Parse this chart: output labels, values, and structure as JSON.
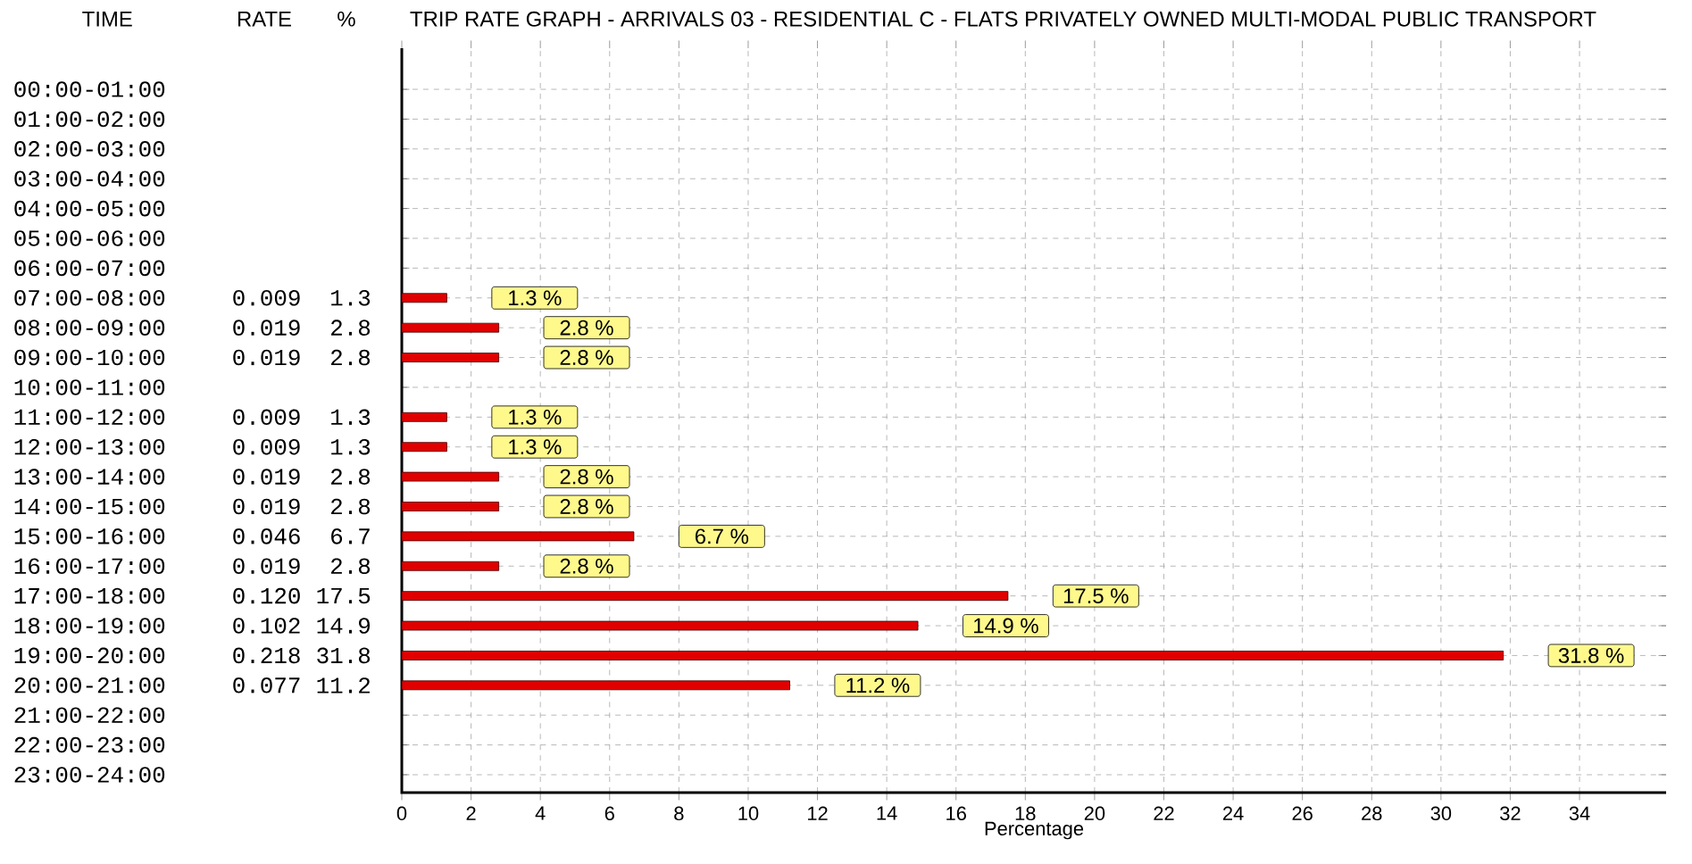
{
  "chart_data": {
    "type": "bar",
    "orientation": "horizontal",
    "title": "TRIP RATE GRAPH - ARRIVALS  03 - RESIDENTIAL  C - FLATS PRIVATELY OWNED     MULTI-MODAL PUBLIC TRANSPORT",
    "ylabel": "TIME",
    "xlabel": "Percentage",
    "categories": [
      "00:00-01:00",
      "01:00-02:00",
      "02:00-03:00",
      "03:00-04:00",
      "04:00-05:00",
      "05:00-06:00",
      "06:00-07:00",
      "07:00-08:00",
      "08:00-09:00",
      "09:00-10:00",
      "10:00-11:00",
      "11:00-12:00",
      "12:00-13:00",
      "13:00-14:00",
      "14:00-15:00",
      "15:00-16:00",
      "16:00-17:00",
      "17:00-18:00",
      "18:00-19:00",
      "19:00-20:00",
      "20:00-21:00",
      "21:00-22:00",
      "22:00-23:00",
      "23:00-24:00"
    ],
    "values": [
      null,
      null,
      null,
      null,
      null,
      null,
      null,
      1.3,
      2.8,
      2.8,
      null,
      1.3,
      1.3,
      2.8,
      2.8,
      6.7,
      2.8,
      17.5,
      14.9,
      31.8,
      11.2,
      null,
      null,
      null
    ],
    "value_labels": [
      null,
      null,
      null,
      null,
      null,
      null,
      null,
      "1.3 %",
      "2.8 %",
      "2.8 %",
      null,
      "1.3 %",
      "1.3 %",
      "2.8 %",
      "2.8 %",
      "6.7 %",
      "2.8 %",
      "17.5 %",
      "14.9 %",
      "31.8 %",
      "11.2 %",
      null,
      null,
      null
    ],
    "color": "#e00000",
    "xlim": [
      0,
      36.5
    ],
    "xticks": [
      0,
      2,
      4,
      6,
      8,
      10,
      12,
      14,
      16,
      18,
      20,
      22,
      24,
      26,
      28,
      30,
      32,
      34
    ],
    "grid": true,
    "line_style": "dashed",
    "annotations": [
      "RATE",
      "%",
      "0.009",
      "1.3",
      "0.019",
      "2.8",
      "0.019",
      "2.8",
      "0.009",
      "1.3",
      "0.009",
      "1.3",
      "0.019",
      "2.8",
      "0.019",
      "2.8",
      "0.046",
      "6.7",
      "0.019",
      "2.8",
      "0.120",
      "17.5",
      "0.102",
      "14.9",
      "0.218",
      "31.8",
      "0.077",
      "11.2"
    ]
  }
}
